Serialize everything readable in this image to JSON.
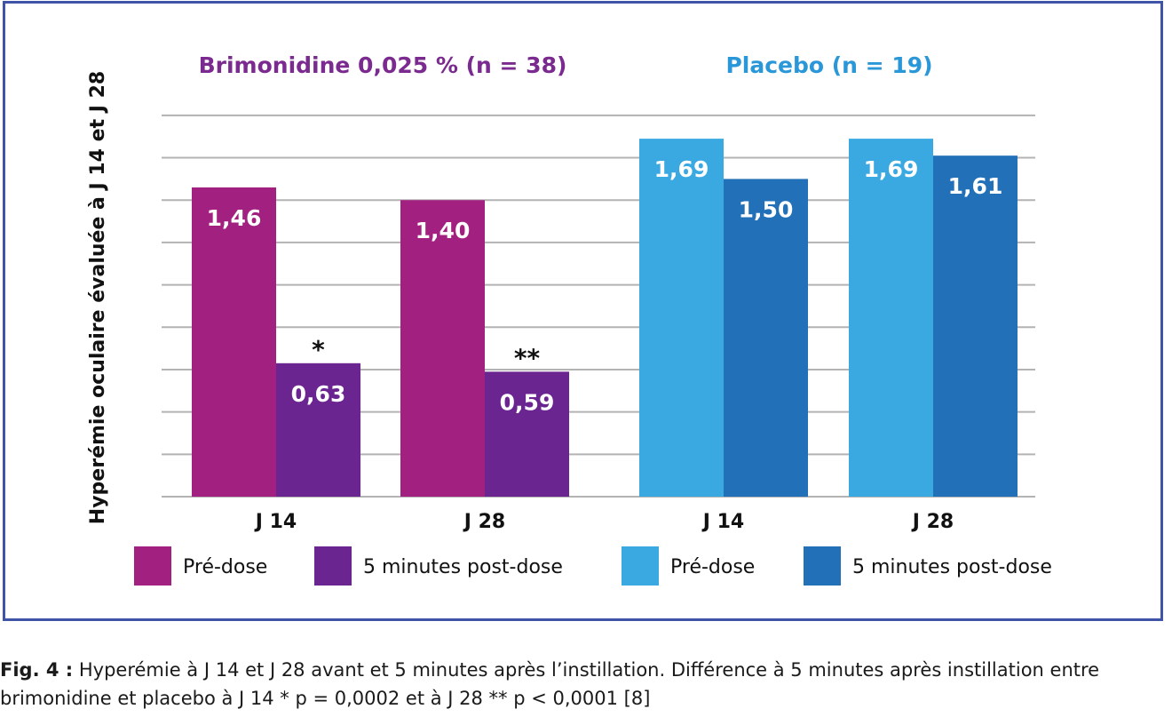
{
  "chart_data": {
    "type": "bar",
    "ylabel": "Hyperémie oculaire évaluée à J 14 et J 28",
    "ylim": [
      0,
      1.8
    ],
    "grid": true,
    "y_ticks_labeled": false,
    "groups": [
      {
        "title": "Brimonidine 0,025 % (n = 38)",
        "title_color": "#7b2a8f",
        "categories": [
          "J 14",
          "J 28"
        ],
        "series": [
          {
            "name": "Pré-dose",
            "color": "#a2207f",
            "values": [
              1.46,
              1.4
            ],
            "labels": [
              "1,46",
              "1,40"
            ]
          },
          {
            "name": "5 minutes post-dose",
            "color": "#6a2590",
            "values": [
              0.63,
              0.59
            ],
            "labels": [
              "0,63",
              "0,59"
            ],
            "annotations": [
              "*",
              "**"
            ]
          }
        ]
      },
      {
        "title": "Placebo (n = 19)",
        "title_color": "#2a97d8",
        "categories": [
          "J 14",
          "J 28"
        ],
        "series": [
          {
            "name": "Pré-dose",
            "color": "#3aa9e2",
            "values": [
              1.69,
              1.69
            ],
            "labels": [
              "1,69",
              "1,69"
            ]
          },
          {
            "name": "5 minutes post-dose",
            "color": "#2170b8",
            "values": [
              1.5,
              1.61
            ],
            "labels": [
              "1,50",
              "1,61"
            ]
          }
        ]
      }
    ],
    "legend": [
      {
        "label": "Pré-dose",
        "color": "#a2207f"
      },
      {
        "label": "5 minutes post-dose",
        "color": "#6a2590"
      },
      {
        "label": "Pré-dose",
        "color": "#3aa9e2"
      },
      {
        "label": "5 minutes post-dose",
        "color": "#2170b8"
      }
    ],
    "legend_position": "bottom",
    "frame_color": "#3f54a6",
    "grid_color": "#b3b3b3"
  },
  "caption": {
    "label": "Fig. 4 :",
    "text": " Hyperémie à J 14 et J 28 avant et 5 minutes après l’instillation. Différence à 5 minutes après instillation entre brimonidine et placebo à J 14 * p = 0,0002 et à J 28 ** p < 0,0001 [8]"
  }
}
